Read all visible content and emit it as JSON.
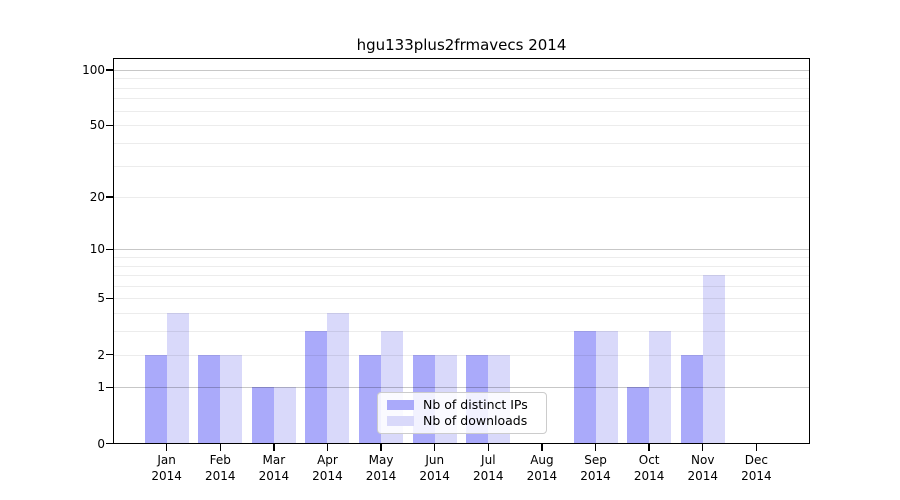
{
  "title": "hgu133plus2frmavecs 2014",
  "legend": {
    "items": [
      {
        "label": "Nb of distinct IPs",
        "color": "#aaaafa"
      },
      {
        "label": "Nb of downloads",
        "color": "#d9d9fa"
      }
    ]
  },
  "chart_data": {
    "type": "bar",
    "title": "hgu133plus2frmavecs 2014",
    "categories": [
      "Jan 2014",
      "Feb 2014",
      "Mar 2014",
      "Apr 2014",
      "May 2014",
      "Jun 2014",
      "Jul 2014",
      "Aug 2014",
      "Sep 2014",
      "Oct 2014",
      "Nov 2014",
      "Dec 2014"
    ],
    "series": [
      {
        "name": "Nb of distinct IPs",
        "color": "#aaaafa",
        "values": [
          2,
          2,
          1,
          3,
          2,
          2,
          2,
          0,
          3,
          1,
          2,
          0
        ]
      },
      {
        "name": "Nb of downloads",
        "color": "#d9d9fa",
        "values": [
          4,
          2,
          1,
          4,
          3,
          2,
          2,
          0,
          3,
          3,
          7,
          0
        ]
      }
    ],
    "yscale": "log1p",
    "ylim": [
      0,
      116
    ],
    "ytick_labels": [
      0,
      1,
      2,
      5,
      10,
      20,
      50,
      100
    ],
    "grid_minor": [
      2,
      3,
      4,
      5,
      6,
      7,
      8,
      9,
      20,
      30,
      40,
      50,
      60,
      70,
      80,
      90
    ],
    "grid_major": [
      1,
      10,
      100
    ],
    "grid": "on",
    "legend_position": "lower center",
    "xlabel": "",
    "ylabel": ""
  }
}
